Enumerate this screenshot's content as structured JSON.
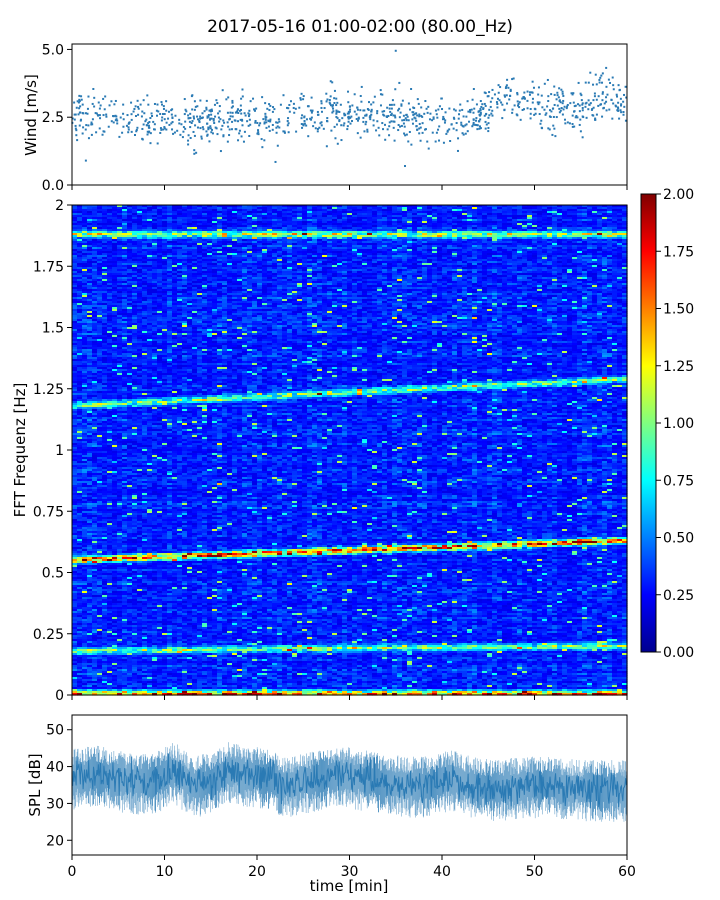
{
  "chart_data": [
    {
      "type": "scatter",
      "title": "2017-05-16 01:00-02:00 (80.00_Hz)",
      "ylabel": "Wind [m/s]",
      "xlim": [
        0,
        60
      ],
      "ylim": [
        0,
        5.2
      ],
      "yticks": [
        "0.0",
        "2.5",
        "5.0"
      ],
      "ytick_values": [
        0,
        2.5,
        5.0
      ],
      "color": "#2a7ab4",
      "baseline": [
        [
          0,
          2.6
        ],
        [
          3,
          2.5
        ],
        [
          6,
          2.5
        ],
        [
          9,
          2.4
        ],
        [
          12,
          2.3
        ],
        [
          15,
          2.4
        ],
        [
          18,
          2.5
        ],
        [
          21,
          2.4
        ],
        [
          24,
          2.6
        ],
        [
          27,
          2.6
        ],
        [
          30,
          2.6
        ],
        [
          33,
          2.5
        ],
        [
          36,
          2.5
        ],
        [
          39,
          2.4
        ],
        [
          42,
          2.4
        ],
        [
          45,
          2.7
        ],
        [
          47,
          3.3
        ],
        [
          49,
          3.1
        ],
        [
          51,
          2.9
        ],
        [
          54,
          2.7
        ],
        [
          57,
          3.3
        ],
        [
          58,
          3.6
        ],
        [
          60,
          2.6
        ]
      ],
      "outliers": [
        [
          35,
          4.95
        ],
        [
          36,
          0.7
        ],
        [
          22,
          0.85
        ],
        [
          1.5,
          0.9
        ]
      ]
    },
    {
      "type": "heatmap",
      "ylabel": "FFT Frequenz [Hz]",
      "xlim": [
        0,
        60
      ],
      "ylim": [
        0,
        2
      ],
      "yticks": [
        "0",
        "0.25",
        "0.5",
        "0.75",
        "1",
        "1.25",
        "1.5",
        "1.75",
        "2"
      ],
      "ytick_values": [
        0,
        0.25,
        0.5,
        0.75,
        1,
        1.25,
        1.5,
        1.75,
        2
      ],
      "colormap": "jet",
      "colorbar": {
        "min": 0,
        "max": 2,
        "ticks": [
          "0.00",
          "0.25",
          "0.50",
          "0.75",
          "1.00",
          "1.25",
          "1.50",
          "1.75",
          "2.00"
        ],
        "tick_values": [
          0,
          0.25,
          0.5,
          0.75,
          1.0,
          1.25,
          1.5,
          1.75,
          2.0
        ]
      },
      "bands": [
        {
          "f_start": 0.55,
          "f_end": 0.63,
          "level": 1.7
        },
        {
          "f_start": 0.18,
          "f_end": 0.2,
          "level": 0.9
        },
        {
          "f_start": 1.18,
          "f_end": 1.29,
          "level": 0.9
        },
        {
          "f_start": 1.88,
          "f_end": 1.88,
          "level": 1.1
        },
        {
          "f_start": 0.005,
          "f_end": 0.005,
          "level": 1.5
        }
      ]
    },
    {
      "type": "area",
      "ylabel": "SPL [dB]",
      "xlabel": "time [min]",
      "xlim": [
        0,
        60
      ],
      "ylim": [
        16,
        54
      ],
      "yticks": [
        "20",
        "30",
        "40",
        "50"
      ],
      "ytick_values": [
        20,
        30,
        40,
        50
      ],
      "xticks": [
        "0",
        "10",
        "20",
        "30",
        "40",
        "50",
        "60"
      ],
      "xtick_values": [
        0,
        10,
        20,
        30,
        40,
        50,
        60
      ],
      "color": "#2a7ab4",
      "mean": [
        [
          0,
          37
        ],
        [
          3,
          38
        ],
        [
          6,
          36
        ],
        [
          9,
          36
        ],
        [
          11,
          39
        ],
        [
          13,
          35
        ],
        [
          15,
          36
        ],
        [
          17,
          39
        ],
        [
          19,
          38
        ],
        [
          21,
          37
        ],
        [
          23,
          35
        ],
        [
          25,
          36
        ],
        [
          27,
          37
        ],
        [
          29,
          38
        ],
        [
          31,
          37
        ],
        [
          33,
          36
        ],
        [
          36,
          35
        ],
        [
          39,
          35
        ],
        [
          41,
          37
        ],
        [
          43,
          35
        ],
        [
          46,
          34
        ],
        [
          49,
          35
        ],
        [
          52,
          35
        ],
        [
          55,
          34
        ],
        [
          58,
          34
        ],
        [
          60,
          34
        ]
      ],
      "spread": 6
    }
  ]
}
